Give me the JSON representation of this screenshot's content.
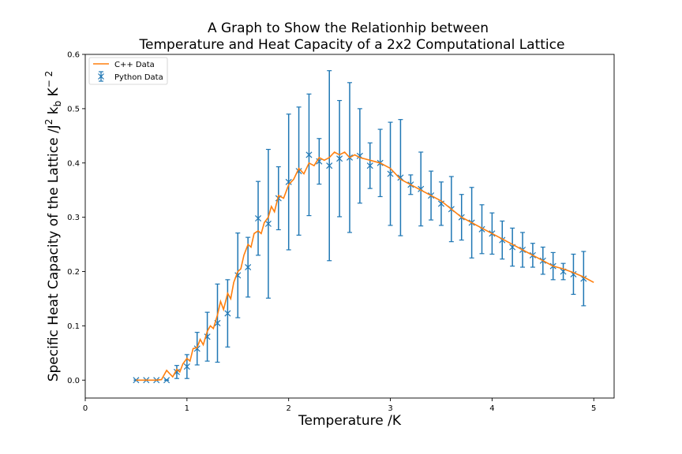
{
  "chart_data": {
    "type": "line",
    "title_line1": "A Graph to Show the Relationhip between",
    "title_line2": "Temperature and Heat Capacity of a 2x2 Computational Lattice",
    "xlabel": "Temperature /K",
    "ylabel_text": "Specific Heat Capacity of the Lattice /J",
    "ylabel_sup1": "2",
    "ylabel_kb": " k",
    "ylabel_sub": "b",
    "ylabel_k": " K",
    "ylabel_sup2": "− 2",
    "xlim": [
      0,
      5.2
    ],
    "ylim": [
      -0.033,
      0.6
    ],
    "xticks": [
      0,
      1,
      2,
      3,
      4,
      5
    ],
    "xtick_labels": [
      "0",
      "1",
      "2",
      "3",
      "4",
      "5"
    ],
    "yticks": [
      0.0,
      0.1,
      0.2,
      0.3,
      0.4,
      0.5,
      0.6
    ],
    "ytick_labels": [
      "0.0",
      "0.1",
      "0.2",
      "0.3",
      "0.4",
      "0.5",
      "0.6"
    ],
    "legend": {
      "placement": "top-left",
      "entries": [
        {
          "label": "C++ Data",
          "kind": "line"
        },
        {
          "label": "Python Data",
          "kind": "errorbar"
        }
      ]
    },
    "colors": {
      "cpp": "#ff7f0e",
      "python": "#1f77b4"
    },
    "series": [
      {
        "name": "C++ Data",
        "kind": "line",
        "x": [
          0.5,
          0.55,
          0.6,
          0.65,
          0.7,
          0.75,
          0.8,
          0.83,
          0.86,
          0.9,
          0.93,
          0.96,
          1.0,
          1.03,
          1.06,
          1.1,
          1.13,
          1.16,
          1.2,
          1.23,
          1.26,
          1.3,
          1.33,
          1.36,
          1.4,
          1.43,
          1.46,
          1.5,
          1.53,
          1.56,
          1.6,
          1.63,
          1.66,
          1.7,
          1.73,
          1.76,
          1.8,
          1.83,
          1.86,
          1.9,
          1.95,
          2.0,
          2.05,
          2.1,
          2.15,
          2.2,
          2.25,
          2.3,
          2.35,
          2.4,
          2.45,
          2.5,
          2.55,
          2.6,
          2.65,
          2.7,
          2.8,
          2.9,
          3.0,
          3.1,
          3.2,
          3.3,
          3.4,
          3.5,
          3.6,
          3.7,
          3.8,
          3.9,
          4.0,
          4.1,
          4.2,
          4.3,
          4.4,
          4.5,
          4.6,
          4.7,
          4.8,
          4.9,
          5.0
        ],
        "y": [
          0.0,
          0.0,
          0.0,
          0.0,
          0.0,
          0.001,
          0.018,
          0.012,
          0.006,
          0.02,
          0.015,
          0.03,
          0.04,
          0.035,
          0.058,
          0.06,
          0.075,
          0.065,
          0.09,
          0.1,
          0.095,
          0.12,
          0.145,
          0.13,
          0.16,
          0.15,
          0.18,
          0.2,
          0.205,
          0.23,
          0.25,
          0.245,
          0.27,
          0.275,
          0.27,
          0.29,
          0.3,
          0.32,
          0.31,
          0.34,
          0.335,
          0.36,
          0.37,
          0.39,
          0.38,
          0.4,
          0.395,
          0.41,
          0.405,
          0.41,
          0.42,
          0.415,
          0.42,
          0.41,
          0.415,
          0.41,
          0.405,
          0.4,
          0.39,
          0.37,
          0.36,
          0.35,
          0.34,
          0.33,
          0.315,
          0.3,
          0.29,
          0.28,
          0.27,
          0.26,
          0.25,
          0.24,
          0.23,
          0.22,
          0.21,
          0.205,
          0.198,
          0.19,
          0.18
        ]
      },
      {
        "name": "Python Data",
        "kind": "errorbar",
        "x": [
          0.5,
          0.6,
          0.7,
          0.8,
          0.9,
          1.0,
          1.1,
          1.2,
          1.3,
          1.4,
          1.5,
          1.6,
          1.7,
          1.8,
          1.9,
          2.0,
          2.1,
          2.2,
          2.3,
          2.4,
          2.5,
          2.6,
          2.7,
          2.8,
          2.9,
          3.0,
          3.1,
          3.2,
          3.3,
          3.4,
          3.5,
          3.6,
          3.7,
          3.8,
          3.9,
          4.0,
          4.1,
          4.2,
          4.3,
          4.4,
          4.5,
          4.6,
          4.7,
          4.8,
          4.9
        ],
        "y": [
          0.0,
          0.0,
          0.0,
          0.0,
          0.015,
          0.025,
          0.058,
          0.08,
          0.105,
          0.123,
          0.193,
          0.208,
          0.298,
          0.288,
          0.335,
          0.365,
          0.385,
          0.415,
          0.403,
          0.395,
          0.408,
          0.41,
          0.413,
          0.395,
          0.4,
          0.38,
          0.373,
          0.36,
          0.352,
          0.34,
          0.325,
          0.315,
          0.3,
          0.29,
          0.278,
          0.27,
          0.258,
          0.245,
          0.24,
          0.23,
          0.22,
          0.21,
          0.2,
          0.195,
          0.187
        ],
        "err": [
          0.0,
          0.0,
          0.0,
          0.0,
          0.012,
          0.022,
          0.03,
          0.045,
          0.072,
          0.062,
          0.078,
          0.055,
          0.068,
          0.137,
          0.058,
          0.125,
          0.118,
          0.112,
          0.042,
          0.175,
          0.107,
          0.138,
          0.087,
          0.042,
          0.062,
          0.095,
          0.107,
          0.018,
          0.068,
          0.045,
          0.04,
          0.06,
          0.042,
          0.065,
          0.045,
          0.038,
          0.035,
          0.035,
          0.032,
          0.022,
          0.025,
          0.025,
          0.015,
          0.037,
          0.05
        ]
      }
    ]
  }
}
